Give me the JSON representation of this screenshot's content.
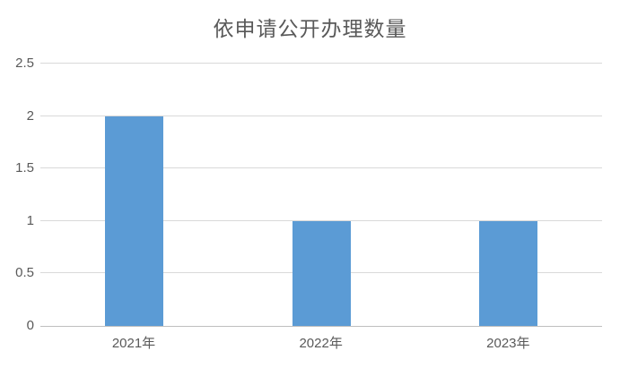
{
  "chart_data": {
    "type": "bar",
    "title": "依申请公开办理数量",
    "categories": [
      "2021年",
      "2022年",
      "2023年"
    ],
    "values": [
      2,
      1,
      1
    ],
    "xlabel": "",
    "ylabel": "",
    "ylim": [
      0,
      2.5
    ],
    "ytick_step": 0.5,
    "ytick_labels": [
      "0",
      "0.5",
      "1",
      "1.5",
      "2",
      "2.5"
    ],
    "legend": false,
    "grid": true,
    "colors": {
      "bar": "#5B9BD5",
      "gridline": "#D9D9D9",
      "axis_line": "#BFBFBF",
      "text": "#595959",
      "background": "#FFFFFF"
    }
  }
}
